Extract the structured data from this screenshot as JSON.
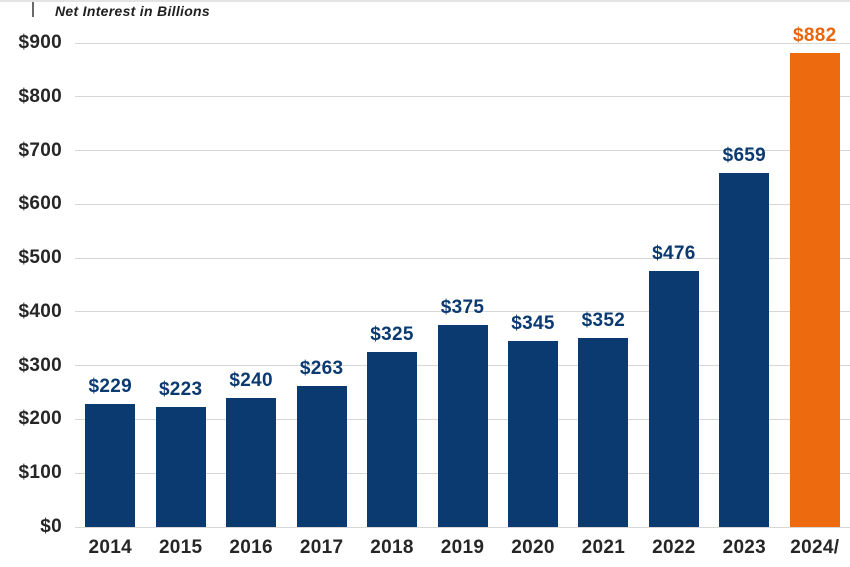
{
  "page": {
    "title": "Net Interest in Billions"
  },
  "colors": {
    "bar_navy": "#0b3a70",
    "bar_orange": "#ee6a0e",
    "value_label_navy": "#0b3a70",
    "value_label_orange": "#e8650e",
    "grid": "#d7d7d7",
    "axis_text": "#262626",
    "title_text": "#1f1f1f"
  },
  "chart_data": {
    "type": "bar",
    "title": "Net Interest in Billions",
    "categories": [
      "2014",
      "2015",
      "2016",
      "2017",
      "2018",
      "2019",
      "2020",
      "2021",
      "2022",
      "2023",
      "2024"
    ],
    "xtick_labels": [
      "2014",
      "2015",
      "2016",
      "2017",
      "2018",
      "2019",
      "2020",
      "2021",
      "2022",
      "2023",
      "2024/"
    ],
    "values": [
      229,
      223,
      240,
      263,
      325,
      375,
      345,
      352,
      476,
      659,
      882
    ],
    "value_labels": [
      "$229",
      "$223",
      "$240",
      "$263",
      "$325",
      "$375",
      "$345",
      "$352",
      "$476",
      "$659",
      "$882"
    ],
    "highlight_index": 10,
    "xlabel": "",
    "ylabel": "",
    "ylim": [
      0,
      900
    ],
    "ytick_step": 100,
    "ytick_labels": [
      "$0",
      "$100",
      "$200",
      "$300",
      "$400",
      "$500",
      "$600",
      "$700",
      "$800",
      "$900"
    ],
    "grid": "horizontal",
    "legend": "none"
  }
}
